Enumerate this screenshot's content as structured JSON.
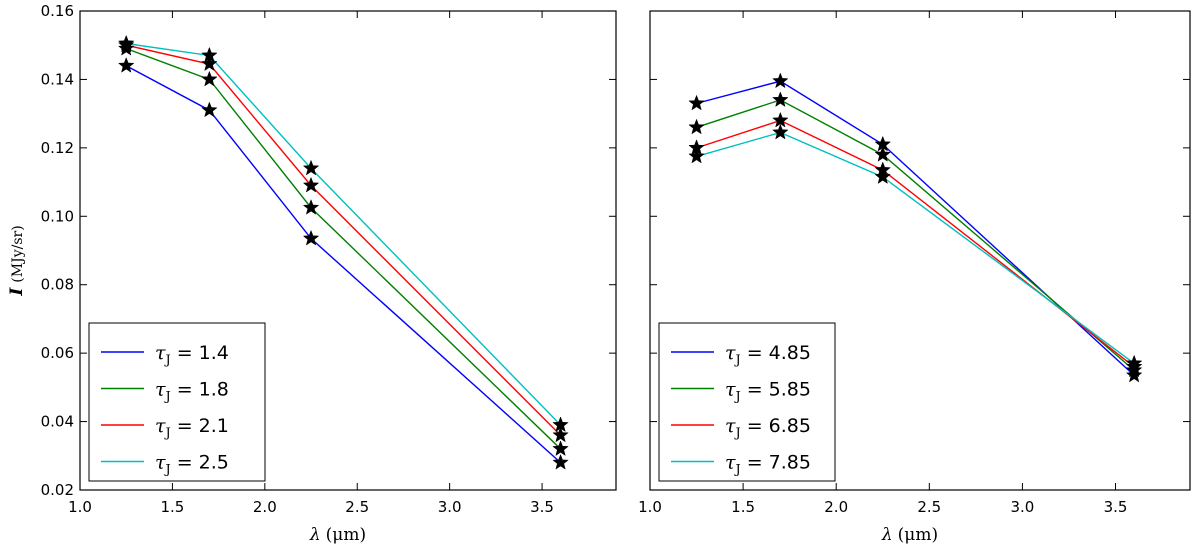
{
  "chart_data": [
    {
      "type": "line",
      "title": "",
      "xlabel_var": "λ",
      "xlabel_unit": "(μm)",
      "ylabel_var": "I",
      "ylabel_unit": "(MJy/sr)",
      "xlim": [
        1.0,
        3.9
      ],
      "ylim": [
        0.02,
        0.16
      ],
      "xticks": [
        "1.0",
        "1.5",
        "2.0",
        "2.5",
        "3.0",
        "3.5"
      ],
      "yticks": [
        "0.02",
        "0.04",
        "0.06",
        "0.08",
        "0.10",
        "0.12",
        "0.14",
        "0.16"
      ],
      "x": [
        1.25,
        1.7,
        2.25,
        3.6
      ],
      "marker": "star",
      "legend_position": "lower-left",
      "series": [
        {
          "name": "1.4",
          "color": "#0000ff",
          "values": [
            0.144,
            0.131,
            0.0935,
            0.028
          ]
        },
        {
          "name": "1.8",
          "color": "#008000",
          "values": [
            0.149,
            0.14,
            0.1025,
            0.032
          ]
        },
        {
          "name": "2.1",
          "color": "#ff0000",
          "values": [
            0.15,
            0.1445,
            0.109,
            0.036
          ]
        },
        {
          "name": "2.5",
          "color": "#00bfbf",
          "values": [
            0.1505,
            0.147,
            0.114,
            0.039
          ]
        }
      ]
    },
    {
      "type": "line",
      "title": "",
      "xlabel_var": "λ",
      "xlabel_unit": "(μm)",
      "xlim": [
        1.0,
        3.9
      ],
      "ylim": [
        0.02,
        0.16
      ],
      "xticks": [
        "1.0",
        "1.5",
        "2.0",
        "2.5",
        "3.0",
        "3.5"
      ],
      "x": [
        1.25,
        1.7,
        2.25,
        3.6
      ],
      "marker": "star",
      "legend_position": "lower-left",
      "series": [
        {
          "name": "4.85",
          "color": "#0000ff",
          "values": [
            0.133,
            0.1395,
            0.121,
            0.0535
          ]
        },
        {
          "name": "5.85",
          "color": "#008000",
          "values": [
            0.126,
            0.134,
            0.118,
            0.055
          ]
        },
        {
          "name": "6.85",
          "color": "#ff0000",
          "values": [
            0.12,
            0.128,
            0.1135,
            0.056
          ]
        },
        {
          "name": "7.85",
          "color": "#00bfbf",
          "values": [
            0.1175,
            0.1245,
            0.1115,
            0.057
          ]
        }
      ]
    }
  ],
  "legend_prefix_symbol": "τ",
  "legend_prefix_subscript": "J",
  "legend_equals": "="
}
